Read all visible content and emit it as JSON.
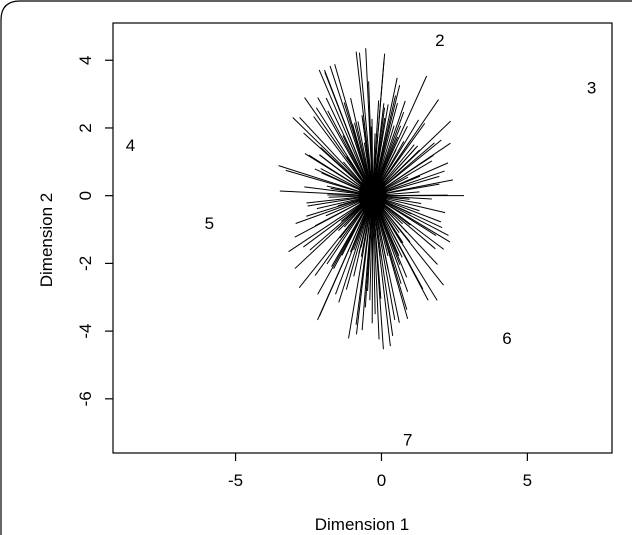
{
  "chart_data": {
    "type": "scatter",
    "title": "",
    "xlabel": "Dimension 1",
    "ylabel": "Dimension 2",
    "xlim": [
      -9.2,
      7.9
    ],
    "ylim": [
      -7.6,
      5.1
    ],
    "xticks": [
      -5,
      0,
      5
    ],
    "yticks": [
      4,
      2,
      0,
      -2,
      -4,
      -6
    ],
    "grid": false,
    "legend": "none",
    "center": [
      -0.3,
      0.0
    ],
    "points": [
      {
        "label": "2",
        "x": 2.0,
        "y": 4.6
      },
      {
        "label": "3",
        "x": 7.2,
        "y": 3.2
      },
      {
        "label": "4",
        "x": -8.6,
        "y": 1.5
      },
      {
        "label": "5",
        "x": -5.9,
        "y": -0.8
      },
      {
        "label": "6",
        "x": 4.3,
        "y": -4.2
      },
      {
        "label": "7",
        "x": 0.9,
        "y": -7.2
      }
    ],
    "rays": {
      "count": 180,
      "extent_x": 3.3,
      "extent_y": 4.6
    },
    "colors": {
      "line": "#000000",
      "background": "#ffffff"
    }
  }
}
